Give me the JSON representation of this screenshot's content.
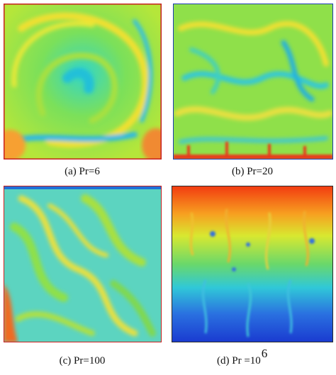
{
  "panels": [
    {
      "caption": "(a) Pr=6"
    },
    {
      "caption": "(b) Pr=20"
    },
    {
      "caption": "(c) Pr=100"
    },
    {
      "caption": "(d) Pr =10",
      "caption_superscript": "6"
    }
  ]
}
